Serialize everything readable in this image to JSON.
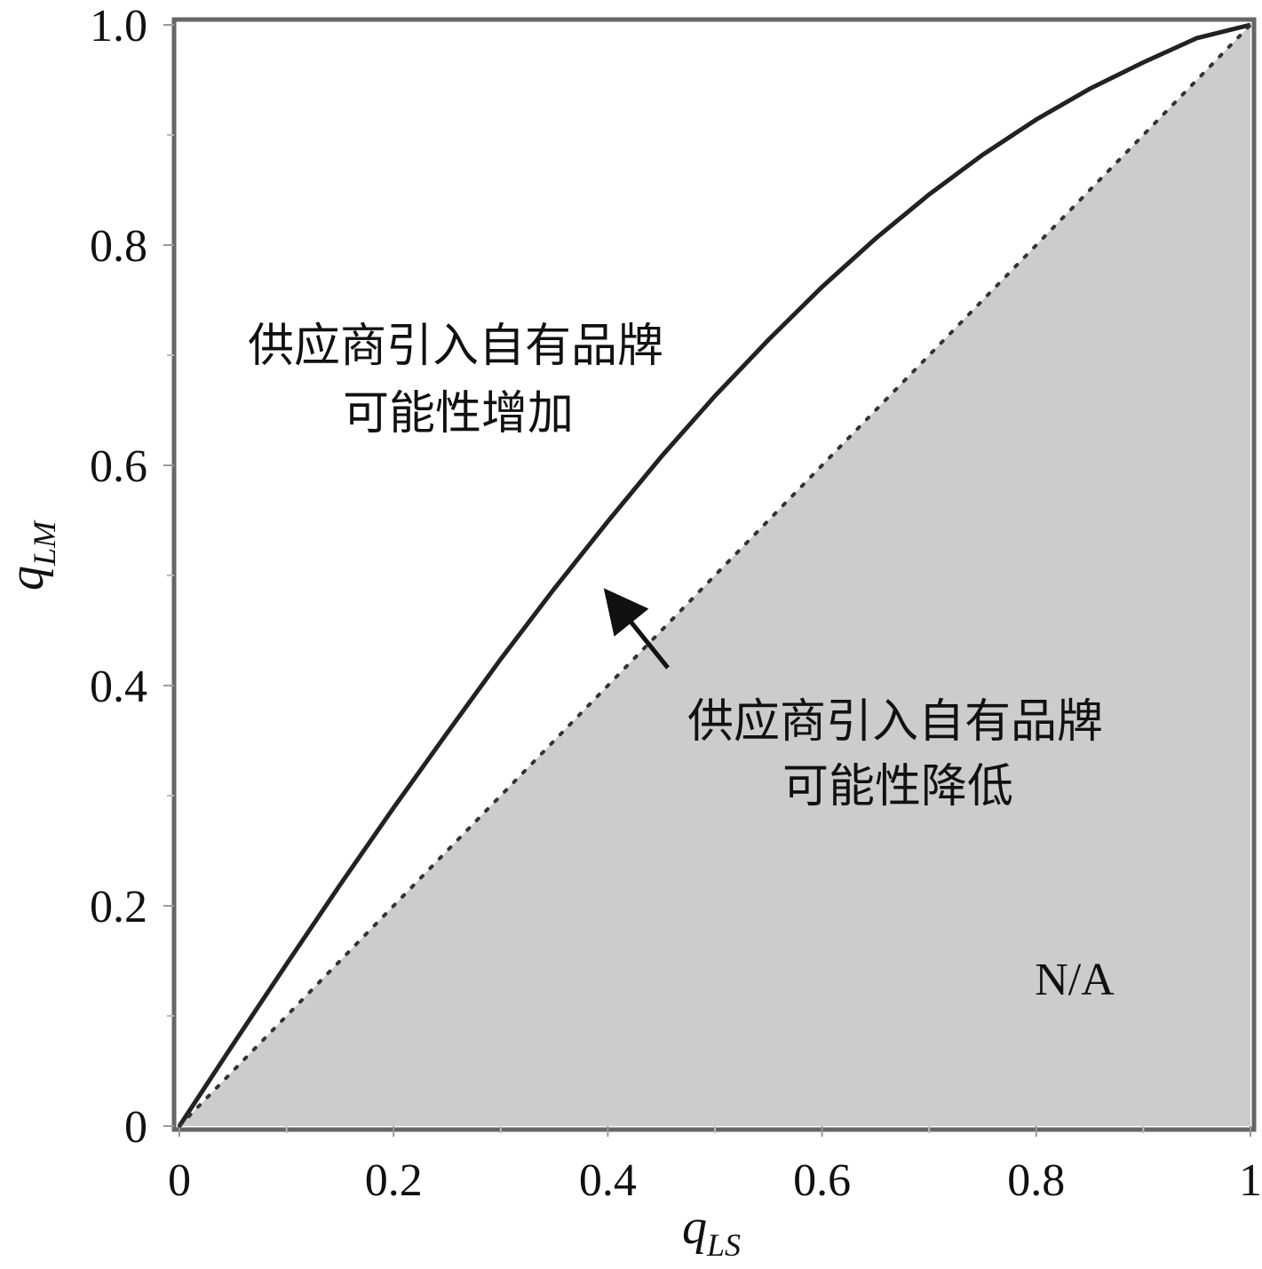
{
  "chart_data": {
    "type": "line",
    "xlabel": {
      "main": "q",
      "sub": "LS"
    },
    "ylabel": {
      "main": "q",
      "sub": "LM"
    },
    "xlim": [
      0,
      1
    ],
    "ylim": [
      0,
      1
    ],
    "grid": false,
    "x_ticks": [
      {
        "value": 0,
        "label": "0"
      },
      {
        "value": 0.2,
        "label": "0.2"
      },
      {
        "value": 0.4,
        "label": "0.4"
      },
      {
        "value": 0.6,
        "label": "0.6"
      },
      {
        "value": 0.8,
        "label": "0.8"
      },
      {
        "value": 1,
        "label": "1"
      }
    ],
    "y_ticks": [
      {
        "value": 0,
        "label": "0"
      },
      {
        "value": 0.2,
        "label": "0.2"
      },
      {
        "value": 0.4,
        "label": "0.4"
      },
      {
        "value": 0.6,
        "label": "0.6"
      },
      {
        "value": 0.8,
        "label": "0.8"
      },
      {
        "value": 1.0,
        "label": "1.0"
      }
    ],
    "series": [
      {
        "style": "solid",
        "color": "#222222",
        "x": [
          0,
          0.05,
          0.1,
          0.15,
          0.2,
          0.25,
          0.3,
          0.35,
          0.4,
          0.45,
          0.5,
          0.55,
          0.6,
          0.65,
          0.7,
          0.75,
          0.8,
          0.85,
          0.9,
          0.95,
          1.0
        ],
        "y": [
          0,
          0.074,
          0.147,
          0.219,
          0.289,
          0.357,
          0.424,
          0.488,
          0.549,
          0.608,
          0.663,
          0.714,
          0.762,
          0.806,
          0.846,
          0.882,
          0.914,
          0.942,
          0.966,
          0.988,
          1.0
        ]
      },
      {
        "style": "dotted",
        "color": "#333333",
        "x": [
          0,
          1
        ],
        "y": [
          0,
          1
        ]
      }
    ],
    "shaded_region": {
      "color": "#cccccc",
      "bound": "below y = x"
    },
    "annotations": [
      {
        "lines": [
          "供应商引入自有品牌",
          "可能性增加"
        ]
      },
      {
        "lines": [
          "供应商引入自有品牌",
          "可能性降低"
        ],
        "arrow_to": [
          0.395,
          0.495
        ]
      },
      {
        "lines": [
          "N/A"
        ]
      }
    ]
  }
}
